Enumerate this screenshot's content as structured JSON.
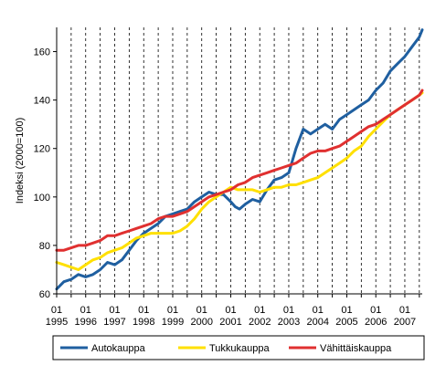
{
  "chart_data": {
    "type": "line",
    "ylabel": "Indeksi (2000=100)",
    "ylim": [
      60,
      170
    ],
    "yticks": [
      60,
      80,
      100,
      120,
      140,
      160
    ],
    "x_tick_labels": [
      {
        "month": "01",
        "year": "1995",
        "x": 1995.0
      },
      {
        "month": "01",
        "year": "1996",
        "x": 1996.0
      },
      {
        "month": "01",
        "year": "1997",
        "x": 1997.0
      },
      {
        "month": "01",
        "year": "1998",
        "x": 1998.0
      },
      {
        "month": "01",
        "year": "1999",
        "x": 1999.0
      },
      {
        "month": "01",
        "year": "2000",
        "x": 2000.0
      },
      {
        "month": "01",
        "year": "2001",
        "x": 2001.0
      },
      {
        "month": "01",
        "year": "2002",
        "x": 2002.0
      },
      {
        "month": "01",
        "year": "2003",
        "x": 2003.0
      },
      {
        "month": "01",
        "year": "2004",
        "x": 2004.0
      },
      {
        "month": "01",
        "year": "2005",
        "x": 2005.0
      },
      {
        "month": "01",
        "year": "2006",
        "x": 2006.0
      },
      {
        "month": "01",
        "year": "2007",
        "x": 2007.0
      }
    ],
    "vertical_gridlines": "dashed, every 6 months",
    "legend_position": "bottom",
    "series": [
      {
        "name": "Autokauppa",
        "color": "#1f5fa0",
        "points": [
          [
            1995.0,
            62
          ],
          [
            1995.25,
            65
          ],
          [
            1995.5,
            66
          ],
          [
            1995.75,
            68
          ],
          [
            1996.0,
            67
          ],
          [
            1996.25,
            68
          ],
          [
            1996.5,
            70
          ],
          [
            1996.75,
            73
          ],
          [
            1997.0,
            72
          ],
          [
            1997.25,
            74
          ],
          [
            1997.5,
            78
          ],
          [
            1997.75,
            82
          ],
          [
            1998.0,
            85
          ],
          [
            1998.25,
            87
          ],
          [
            1998.5,
            89
          ],
          [
            1998.75,
            92
          ],
          [
            1999.0,
            93
          ],
          [
            1999.25,
            94
          ],
          [
            1999.5,
            95
          ],
          [
            1999.75,
            98
          ],
          [
            2000.0,
            100
          ],
          [
            2000.25,
            102
          ],
          [
            2000.5,
            101
          ],
          [
            2000.75,
            101
          ],
          [
            2001.0,
            98
          ],
          [
            2001.15,
            96
          ],
          [
            2001.3,
            95
          ],
          [
            2001.5,
            97
          ],
          [
            2001.75,
            99
          ],
          [
            2002.0,
            98
          ],
          [
            2002.25,
            103
          ],
          [
            2002.5,
            107
          ],
          [
            2002.75,
            108
          ],
          [
            2003.0,
            110
          ],
          [
            2003.25,
            120
          ],
          [
            2003.5,
            128
          ],
          [
            2003.75,
            126
          ],
          [
            2004.0,
            128
          ],
          [
            2004.25,
            130
          ],
          [
            2004.5,
            128
          ],
          [
            2004.75,
            132
          ],
          [
            2005.0,
            134
          ],
          [
            2005.25,
            136
          ],
          [
            2005.5,
            138
          ],
          [
            2005.75,
            140
          ],
          [
            2006.0,
            144
          ],
          [
            2006.25,
            147
          ],
          [
            2006.5,
            152
          ],
          [
            2006.75,
            155
          ],
          [
            2007.0,
            158
          ],
          [
            2007.25,
            162
          ],
          [
            2007.5,
            166
          ],
          [
            2007.6,
            169
          ]
        ]
      },
      {
        "name": "Tukkukauppa",
        "color": "#ffe000",
        "points": [
          [
            1995.0,
            73
          ],
          [
            1995.25,
            72
          ],
          [
            1995.5,
            71
          ],
          [
            1995.75,
            70
          ],
          [
            1996.0,
            72
          ],
          [
            1996.25,
            74
          ],
          [
            1996.5,
            75
          ],
          [
            1996.75,
            77
          ],
          [
            1997.0,
            78
          ],
          [
            1997.25,
            79
          ],
          [
            1997.5,
            81
          ],
          [
            1997.75,
            83
          ],
          [
            1998.0,
            84
          ],
          [
            1998.25,
            85
          ],
          [
            1998.5,
            85
          ],
          [
            1998.75,
            85
          ],
          [
            1999.0,
            85
          ],
          [
            1999.25,
            86
          ],
          [
            1999.5,
            88
          ],
          [
            1999.75,
            91
          ],
          [
            2000.0,
            95
          ],
          [
            2000.25,
            98
          ],
          [
            2000.5,
            100
          ],
          [
            2000.75,
            102
          ],
          [
            2001.0,
            104
          ],
          [
            2001.25,
            103
          ],
          [
            2001.5,
            103
          ],
          [
            2001.75,
            103
          ],
          [
            2002.0,
            102
          ],
          [
            2002.25,
            103
          ],
          [
            2002.5,
            104
          ],
          [
            2002.75,
            104
          ],
          [
            2003.0,
            105
          ],
          [
            2003.25,
            105
          ],
          [
            2003.5,
            106
          ],
          [
            2003.75,
            107
          ],
          [
            2004.0,
            108
          ],
          [
            2004.25,
            110
          ],
          [
            2004.5,
            112
          ],
          [
            2004.75,
            114
          ],
          [
            2005.0,
            116
          ],
          [
            2005.25,
            119
          ],
          [
            2005.5,
            121
          ],
          [
            2005.75,
            125
          ],
          [
            2006.0,
            128
          ],
          [
            2006.25,
            131
          ],
          [
            2006.5,
            134
          ],
          [
            2006.75,
            136
          ],
          [
            2007.0,
            138
          ],
          [
            2007.25,
            140
          ],
          [
            2007.5,
            142
          ],
          [
            2007.6,
            143
          ]
        ]
      },
      {
        "name": "Vähittäiskauppa",
        "color": "#e03030",
        "points": [
          [
            1995.0,
            78
          ],
          [
            1995.25,
            78
          ],
          [
            1995.5,
            79
          ],
          [
            1995.75,
            80
          ],
          [
            1996.0,
            80
          ],
          [
            1996.25,
            81
          ],
          [
            1996.5,
            82
          ],
          [
            1996.75,
            84
          ],
          [
            1997.0,
            84
          ],
          [
            1997.25,
            85
          ],
          [
            1997.5,
            86
          ],
          [
            1997.75,
            87
          ],
          [
            1998.0,
            88
          ],
          [
            1998.25,
            89
          ],
          [
            1998.5,
            91
          ],
          [
            1998.75,
            92
          ],
          [
            1999.0,
            92
          ],
          [
            1999.25,
            93
          ],
          [
            1999.5,
            94
          ],
          [
            1999.75,
            96
          ],
          [
            2000.0,
            98
          ],
          [
            2000.25,
            100
          ],
          [
            2000.5,
            101
          ],
          [
            2000.75,
            102
          ],
          [
            2001.0,
            103
          ],
          [
            2001.25,
            105
          ],
          [
            2001.5,
            106
          ],
          [
            2001.75,
            108
          ],
          [
            2002.0,
            109
          ],
          [
            2002.25,
            110
          ],
          [
            2002.5,
            111
          ],
          [
            2002.75,
            112
          ],
          [
            2003.0,
            113
          ],
          [
            2003.25,
            114
          ],
          [
            2003.5,
            116
          ],
          [
            2003.75,
            118
          ],
          [
            2004.0,
            119
          ],
          [
            2004.25,
            119
          ],
          [
            2004.5,
            120
          ],
          [
            2004.75,
            121
          ],
          [
            2005.0,
            123
          ],
          [
            2005.25,
            125
          ],
          [
            2005.5,
            127
          ],
          [
            2005.75,
            129
          ],
          [
            2006.0,
            130
          ],
          [
            2006.25,
            132
          ],
          [
            2006.5,
            134
          ],
          [
            2006.75,
            136
          ],
          [
            2007.0,
            138
          ],
          [
            2007.25,
            140
          ],
          [
            2007.5,
            142
          ],
          [
            2007.6,
            144
          ]
        ]
      }
    ]
  }
}
